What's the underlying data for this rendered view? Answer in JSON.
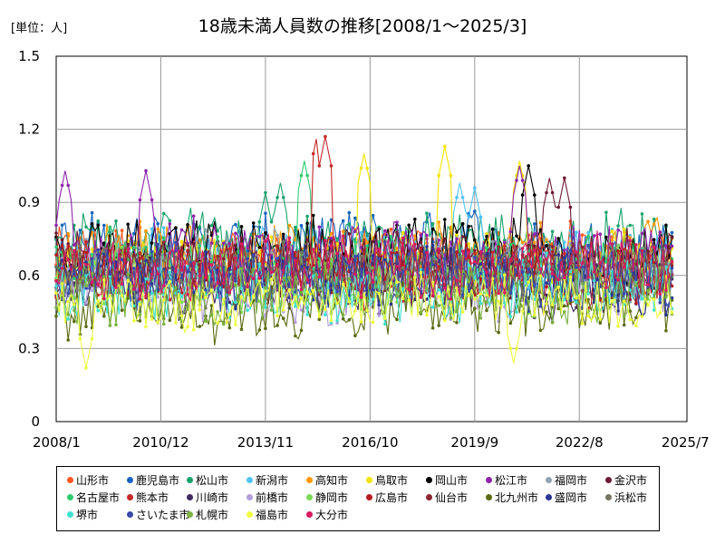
{
  "chart_data": {
    "type": "line",
    "title": "18歳未満人員数の推移[2008/1～2025/3]",
    "unit_label": "[単位：人]",
    "y_ticks": [
      "1.5",
      "1.2",
      "0.9",
      "0.6",
      "0.3",
      "0"
    ],
    "y_tick_values": [
      1.5,
      1.2,
      0.9,
      0.6,
      0.3,
      0
    ],
    "ylim": [
      0,
      1.5
    ],
    "x_ticks": [
      "2008/1",
      "2010/12",
      "2013/11",
      "2016/10",
      "2019/9",
      "2022/8",
      "2025/7"
    ],
    "x_range": [
      "2008/1",
      "2025/7"
    ],
    "grid": true,
    "legend_position": "bottom",
    "note": "Values are monthly readings 2008/1–2025/3 (207 months); individual values are too dense to read, so each series is approximated by its visible base level and notable peaks.",
    "series": [
      {
        "name": "山形市",
        "color": "#ff5722",
        "base": 0.68,
        "peaks": [
          [
            209,
            0.9
          ]
        ]
      },
      {
        "name": "鹿児島市",
        "color": "#1565c0",
        "base": 0.72,
        "peaks": [
          [
            209,
            0.82
          ]
        ]
      },
      {
        "name": "松山市",
        "color": "#1aa36b",
        "base": 0.74,
        "peaks": [
          [
            70,
            0.94
          ],
          [
            75,
            0.98
          ]
        ]
      },
      {
        "name": "新潟市",
        "color": "#4fc3f7",
        "base": 0.66,
        "peaks": [
          [
            135,
            0.98
          ],
          [
            140,
            0.96
          ]
        ]
      },
      {
        "name": "高知市",
        "color": "#ff9800",
        "base": 0.7,
        "peaks": []
      },
      {
        "name": "鳥取市",
        "color": "#f4e400",
        "base": 0.64,
        "peaks": [
          [
            103,
            1.1
          ],
          [
            130,
            1.13
          ],
          [
            155,
            1.07
          ]
        ]
      },
      {
        "name": "岡山市",
        "color": "#000000",
        "base": 0.7,
        "peaks": [
          [
            158,
            1.05
          ]
        ]
      },
      {
        "name": "松江市",
        "color": "#8e24aa",
        "base": 0.7,
        "peaks": [
          [
            3,
            1.03
          ],
          [
            30,
            1.03
          ],
          [
            155,
            1.05
          ]
        ]
      },
      {
        "name": "福岡市",
        "color": "#90a4ae",
        "base": 0.64,
        "peaks": []
      },
      {
        "name": "金沢市",
        "color": "#6d1a33",
        "base": 0.66,
        "peaks": [
          [
            165,
            1.0
          ],
          [
            170,
            1.0
          ]
        ]
      },
      {
        "name": "名古屋市",
        "color": "#2ecc71",
        "base": 0.65,
        "peaks": [
          [
            83,
            1.07
          ]
        ]
      },
      {
        "name": "熊本市",
        "color": "#c62828",
        "base": 0.6,
        "peaks": [
          [
            88,
            1.22
          ],
          [
            90,
            1.17
          ]
        ]
      },
      {
        "name": "川崎市",
        "color": "#3f2a60",
        "base": 0.56,
        "peaks": []
      },
      {
        "name": "前橋市",
        "color": "#b39ddb",
        "base": 0.55,
        "peaks": []
      },
      {
        "name": "静岡市",
        "color": "#7ed957",
        "base": 0.58,
        "peaks": []
      },
      {
        "name": "広島市",
        "color": "#b71c1c",
        "base": 0.62,
        "peaks": []
      },
      {
        "name": "仙台市",
        "color": "#8b2530",
        "base": 0.62,
        "peaks": []
      },
      {
        "name": "北九州市",
        "color": "#5a6b10",
        "base": 0.46,
        "peaks": []
      },
      {
        "name": "盛岡市",
        "color": "#283593",
        "base": 0.58,
        "peaks": []
      },
      {
        "name": "浜松市",
        "color": "#757560",
        "base": 0.6,
        "peaks": []
      },
      {
        "name": "堺市",
        "color": "#40e0d0",
        "base": 0.55,
        "peaks": []
      },
      {
        "name": "さいたま市",
        "color": "#3949ab",
        "base": 0.6,
        "peaks": []
      },
      {
        "name": "札幌市",
        "color": "#7cb342",
        "base": 0.52,
        "peaks": []
      },
      {
        "name": "福島市",
        "color": "#eeff41",
        "base": 0.5,
        "peaks": [
          [
            10,
            0.22
          ],
          [
            153,
            0.24
          ]
        ]
      },
      {
        "name": "大分市",
        "color": "#d81b60",
        "base": 0.64,
        "peaks": []
      }
    ]
  }
}
